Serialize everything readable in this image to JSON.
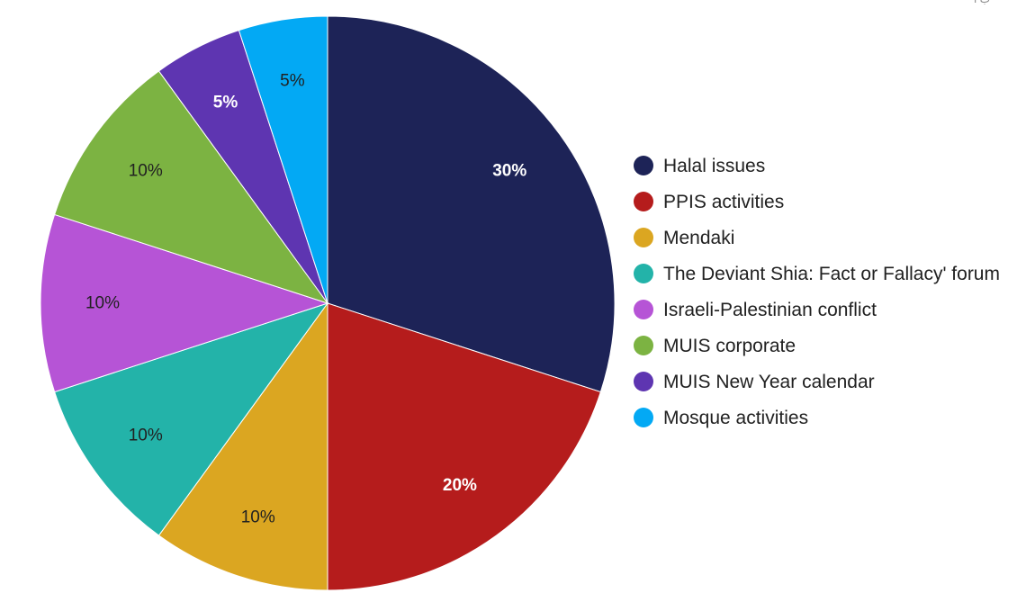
{
  "chart_data": {
    "type": "pie",
    "start": "12 o'clock",
    "direction": "clockwise",
    "slices": [
      {
        "label": "Halal issues",
        "value": 30,
        "display": "30%",
        "color": "#1d2357",
        "label_color": "#ffffff",
        "bold": true
      },
      {
        "label": "PPIS activities",
        "value": 20,
        "display": "20%",
        "color": "#b51c1c",
        "label_color": "#ffffff",
        "bold": true
      },
      {
        "label": "Mendaki",
        "value": 10,
        "display": "10%",
        "color": "#dba621",
        "label_color": "#212121",
        "bold": false
      },
      {
        "label": "The Deviant Shia: Fact or Fallacy' forum",
        "value": 10,
        "display": "10%",
        "color": "#23b3a9",
        "label_color": "#212121",
        "bold": false
      },
      {
        "label": "Israeli-Palestinian conflict",
        "value": 10,
        "display": "10%",
        "color": "#b654d6",
        "label_color": "#212121",
        "bold": false
      },
      {
        "label": "MUIS corporate",
        "value": 10,
        "display": "10%",
        "color": "#7cb342",
        "label_color": "#212121",
        "bold": false
      },
      {
        "label": "MUIS New Year calendar",
        "value": 5,
        "display": "5%",
        "color": "#5e35b1",
        "label_color": "#ffffff",
        "bold": true
      },
      {
        "label": "Mosque activities",
        "value": 5,
        "display": "5%",
        "color": "#03a9f4",
        "label_color": "#212121",
        "bold": false
      }
    ],
    "legend_position": "right"
  },
  "corner_mark": "ب ا"
}
